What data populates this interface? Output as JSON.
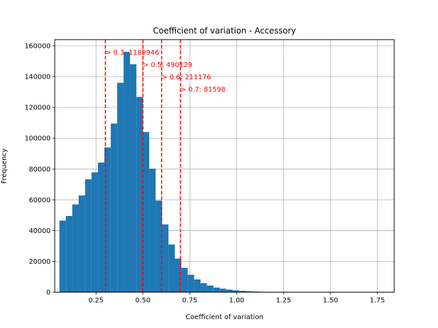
{
  "chart_data": {
    "type": "histogram",
    "title": "Coefficient of variation - Accessory",
    "xlabel": "Coefficient of variation",
    "ylabel": "Frequency",
    "xlim": [
      0.03,
      1.84
    ],
    "ylim": [
      0,
      164000
    ],
    "xticks": [
      0.25,
      0.5,
      0.75,
      1.0,
      1.25,
      1.5,
      1.75
    ],
    "xtick_labels": [
      "0.25",
      "0.50",
      "0.75",
      "1.00",
      "1.25",
      "1.50",
      "1.75"
    ],
    "yticks": [
      0,
      20000,
      40000,
      60000,
      80000,
      100000,
      120000,
      140000,
      160000
    ],
    "ytick_labels": [
      "0",
      "20000",
      "40000",
      "60000",
      "80000",
      "100000",
      "120000",
      "140000",
      "160000"
    ],
    "grid": true,
    "bar_color": "#1f77b4",
    "bin_start": 0.055,
    "bin_width": 0.0342,
    "values": [
      46500,
      49500,
      57000,
      62800,
      73300,
      77800,
      84200,
      94000,
      109500,
      136000,
      156000,
      148000,
      126800,
      104000,
      80200,
      59500,
      44000,
      31000,
      21800,
      15800,
      11300,
      8300,
      5900,
      4300,
      3000,
      2300,
      1700,
      1200,
      900,
      600,
      450,
      330,
      250,
      180,
      130,
      100,
      80,
      60,
      45,
      35,
      28,
      22,
      18,
      15,
      12,
      10,
      8,
      6,
      5,
      4
    ],
    "threshold_color": "#ff0000",
    "thresholds": [
      {
        "x": 0.3,
        "label": "> 0.3: 1189946",
        "label_y": 156000
      },
      {
        "x": 0.5,
        "label": "> 0.5: 490129",
        "label_y": 148000
      },
      {
        "x": 0.6,
        "label": "> 0.6: 211176",
        "label_y": 140000
      },
      {
        "x": 0.7,
        "label": "> 0.7: 81598",
        "label_y": 132000
      }
    ]
  }
}
